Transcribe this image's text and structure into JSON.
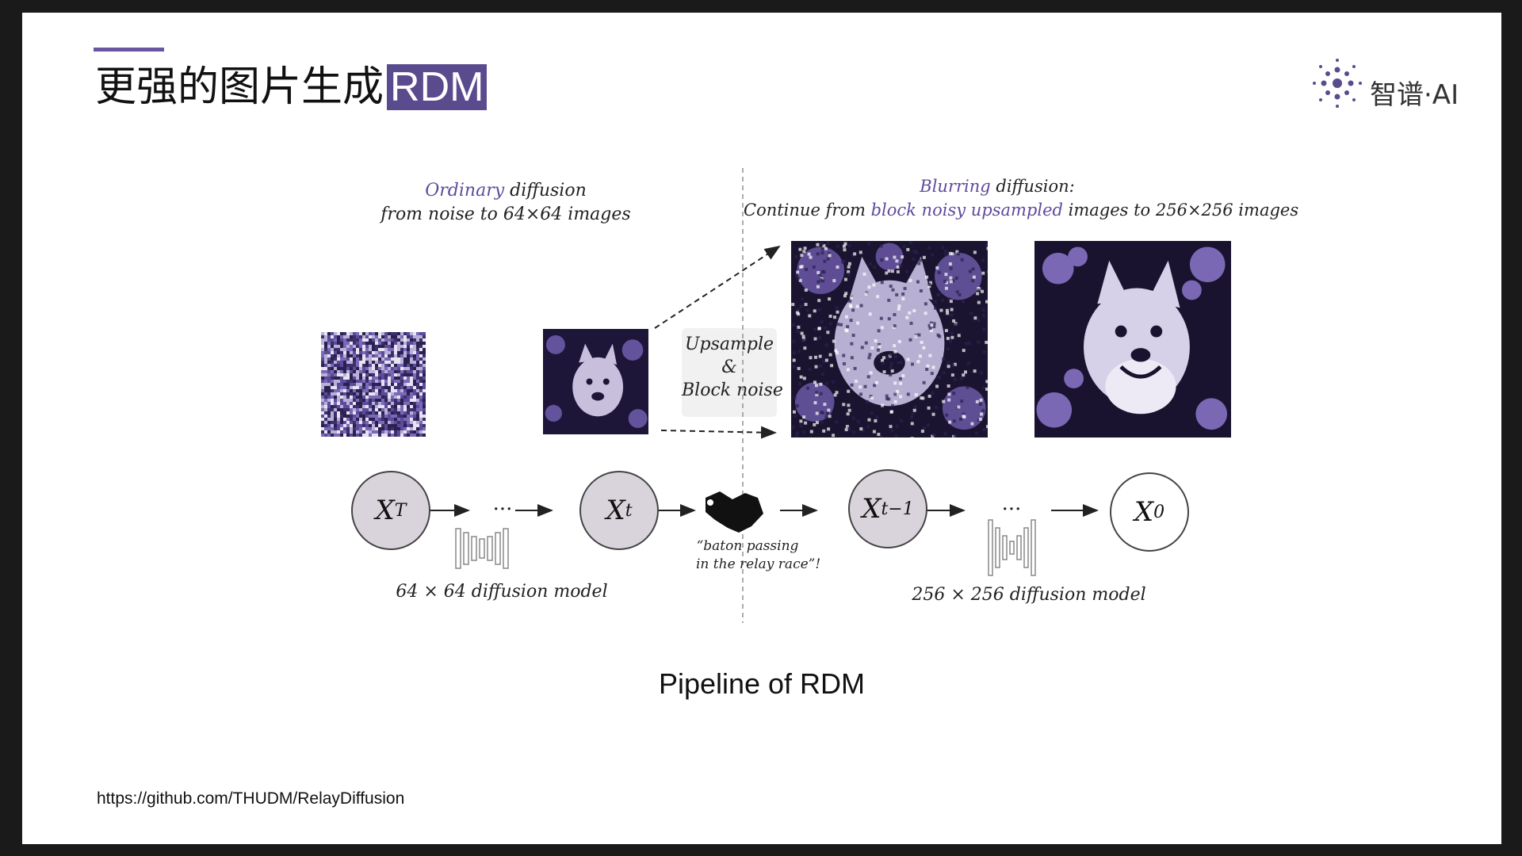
{
  "title": {
    "text": "更强的图片生成",
    "highlight": "RDM"
  },
  "logo": {
    "text": "智谱·AI"
  },
  "left_caption": {
    "line1_purple": "Ordinary",
    "line1_rest": " diffusion",
    "line2": "from noise to 64×64 images"
  },
  "right_caption": {
    "line1_purple": "Blurring",
    "line1_rest": " diffusion:",
    "line2_a": "Continue from ",
    "line2_purple": "block noisy upsampled",
    "line2_b": " images to 256×256 images"
  },
  "upsample_box": {
    "line1": "Upsample",
    "line2": "&",
    "line3": "Block noise"
  },
  "nodes": {
    "xT": "X",
    "xT_sub": "T",
    "xt": "X",
    "xt_sub": "t",
    "xt1": "X",
    "xt1_sub": "t−1",
    "x0": "X",
    "x0_sub": "0"
  },
  "dots": "···",
  "baton_caption": {
    "line1": "“baton passing",
    "line2": "in the relay race”!"
  },
  "model_left": "64 × 64 diffusion model",
  "model_right": "256 × 256 diffusion model",
  "figure_title": "Pipeline of RDM",
  "url": "https://github.com/THUDM/RelayDiffusion",
  "colors": {
    "accent": "#5a4a8e",
    "node_fill": "#d9d4dc"
  },
  "icons": [
    "handshake-icon",
    "unet-icon",
    "zhipu-logo-icon"
  ]
}
